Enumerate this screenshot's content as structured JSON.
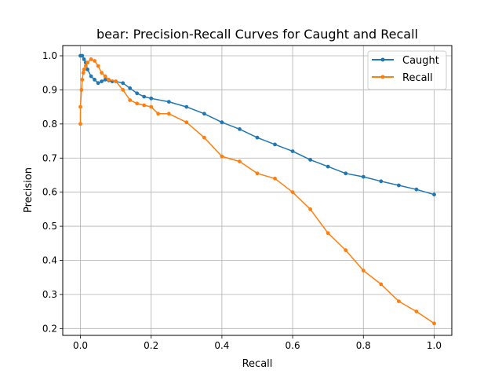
{
  "chart_data": {
    "type": "line",
    "title": "bear: Precision-Recall Curves for Caught and Recall",
    "xlabel": "Recall",
    "ylabel": "Precision",
    "xlim": [
      -0.05,
      1.05
    ],
    "ylim": [
      0.18,
      1.03
    ],
    "xticks": [
      "0.0",
      "0.2",
      "0.4",
      "0.6",
      "0.8",
      "1.0"
    ],
    "yticks": [
      "0.2",
      "0.3",
      "0.4",
      "0.5",
      "0.6",
      "0.7",
      "0.8",
      "0.9",
      "1.0"
    ],
    "grid": true,
    "legend_position": "top-right",
    "series": [
      {
        "name": "Caught",
        "color": "#1f77b4",
        "x": [
          0.0,
          0.005,
          0.01,
          0.015,
          0.02,
          0.03,
          0.04,
          0.05,
          0.06,
          0.07,
          0.08,
          0.09,
          0.1,
          0.12,
          0.14,
          0.16,
          0.18,
          0.2,
          0.25,
          0.3,
          0.35,
          0.4,
          0.45,
          0.5,
          0.55,
          0.6,
          0.65,
          0.7,
          0.75,
          0.8,
          0.85,
          0.9,
          0.95,
          1.0
        ],
        "y": [
          1.0,
          1.0,
          0.99,
          0.98,
          0.96,
          0.94,
          0.93,
          0.92,
          0.925,
          0.93,
          0.928,
          0.925,
          0.925,
          0.92,
          0.905,
          0.89,
          0.88,
          0.875,
          0.865,
          0.85,
          0.83,
          0.805,
          0.785,
          0.76,
          0.74,
          0.72,
          0.695,
          0.675,
          0.655,
          0.645,
          0.632,
          0.62,
          0.608,
          0.593
        ]
      },
      {
        "name": "Recall",
        "color": "#ff7f0e",
        "x": [
          0.0,
          0.0,
          0.003,
          0.005,
          0.008,
          0.01,
          0.015,
          0.02,
          0.03,
          0.04,
          0.05,
          0.06,
          0.07,
          0.08,
          0.1,
          0.12,
          0.14,
          0.16,
          0.18,
          0.2,
          0.22,
          0.25,
          0.3,
          0.35,
          0.4,
          0.45,
          0.5,
          0.55,
          0.6,
          0.65,
          0.7,
          0.75,
          0.8,
          0.85,
          0.9,
          0.95,
          1.0
        ],
        "y": [
          0.8,
          0.85,
          0.9,
          0.93,
          0.95,
          0.96,
          0.97,
          0.98,
          0.99,
          0.985,
          0.97,
          0.95,
          0.94,
          0.93,
          0.925,
          0.9,
          0.87,
          0.86,
          0.855,
          0.85,
          0.83,
          0.83,
          0.805,
          0.76,
          0.705,
          0.69,
          0.655,
          0.64,
          0.6,
          0.55,
          0.48,
          0.43,
          0.37,
          0.33,
          0.28,
          0.25,
          0.215
        ]
      }
    ]
  }
}
